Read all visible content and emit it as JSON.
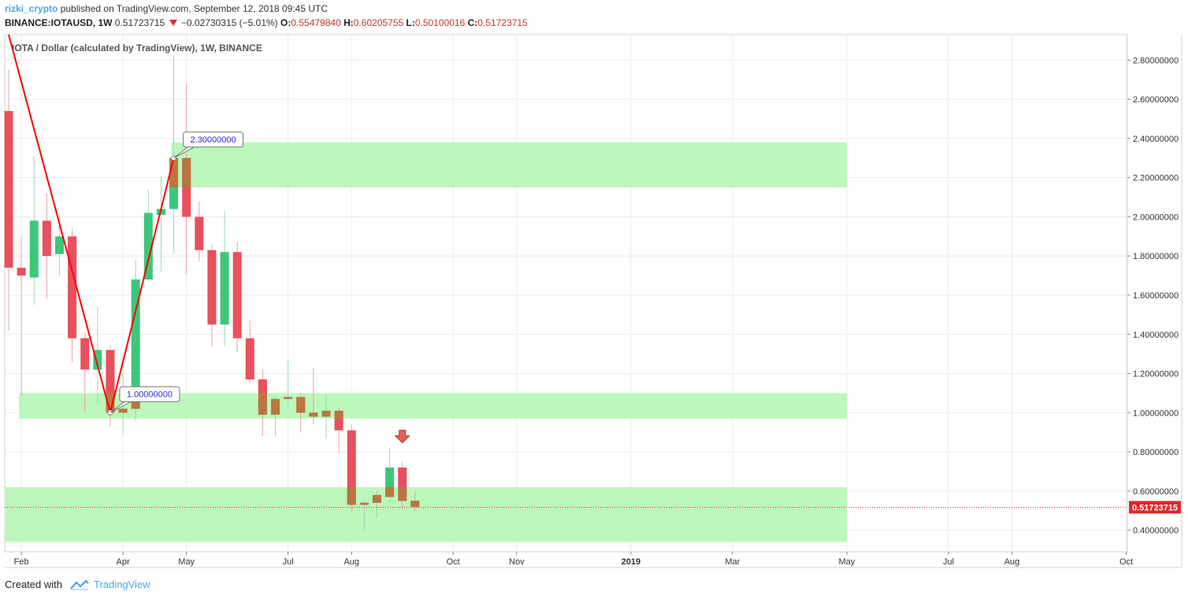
{
  "header": {
    "author": "rizki_crypto",
    "published": "published on TradingView.com, September 12, 2018 09:45 UTC"
  },
  "ohlc": {
    "symbol": "BINANCE:IOTAUSD, 1W",
    "last": "0.51723715",
    "change": "−0.02730315 (−5.01%)",
    "o_label": "O:",
    "o": "0.55479840",
    "h_label": "H:",
    "h": "0.60205755",
    "l_label": "L:",
    "l": "0.50100016",
    "c_label": "C:",
    "c": "0.51723715"
  },
  "footer": {
    "created_with": "Created with",
    "brand": "TradingView"
  },
  "chart_data": {
    "type": "candlestick",
    "title": "IOTA / Dollar (calculated by TradingView), 1W, BINANCE",
    "ylim": [
      0.29,
      2.93
    ],
    "y_ticks": [
      "0.40000000",
      "0.60000000",
      "0.80000000",
      "1.00000000",
      "1.20000000",
      "1.40000000",
      "1.60000000",
      "1.80000000",
      "2.00000000",
      "2.20000000",
      "2.40000000",
      "2.60000000",
      "2.80000000"
    ],
    "y_tick_values": [
      0.4,
      0.6,
      0.8,
      1.0,
      1.2,
      1.4,
      1.6,
      1.8,
      2.0,
      2.2,
      2.4,
      2.6,
      2.8
    ],
    "x_labels": [
      {
        "label": "Feb",
        "week": 1
      },
      {
        "label": "Apr",
        "week": 9
      },
      {
        "label": "May",
        "week": 14
      },
      {
        "label": "Jul",
        "week": 22
      },
      {
        "label": "Aug",
        "week": 27
      },
      {
        "label": "Oct",
        "week": 35
      },
      {
        "label": "Nov",
        "week": 40
      },
      {
        "label": "2019",
        "week": 49
      },
      {
        "label": "Mar",
        "week": 57
      },
      {
        "label": "May",
        "week": 66
      },
      {
        "label": "Jul",
        "week": 74
      },
      {
        "label": "Aug",
        "week": 79
      },
      {
        "label": "Oct",
        "week": 88
      }
    ],
    "bold_x_label": "2019",
    "candles": [
      {
        "o": 2.54,
        "h": 2.75,
        "l": 1.42,
        "c": 1.74
      },
      {
        "o": 1.74,
        "h": 1.9,
        "l": 1.09,
        "c": 1.7
      },
      {
        "o": 1.69,
        "h": 2.31,
        "l": 1.55,
        "c": 1.98
      },
      {
        "o": 1.98,
        "h": 2.12,
        "l": 1.58,
        "c": 1.8
      },
      {
        "o": 1.81,
        "h": 2.02,
        "l": 1.7,
        "c": 1.9
      },
      {
        "o": 1.9,
        "h": 1.94,
        "l": 1.26,
        "c": 1.38
      },
      {
        "o": 1.38,
        "h": 1.41,
        "l": 1.0,
        "c": 1.22
      },
      {
        "o": 1.22,
        "h": 1.54,
        "l": 1.04,
        "c": 1.32
      },
      {
        "o": 1.32,
        "h": 1.34,
        "l": 0.93,
        "c": 1.0
      },
      {
        "o": 1.0,
        "h": 1.26,
        "l": 0.89,
        "c": 1.02
      },
      {
        "o": 1.02,
        "h": 1.78,
        "l": 0.96,
        "c": 1.68
      },
      {
        "o": 1.68,
        "h": 2.14,
        "l": 1.67,
        "c": 2.02
      },
      {
        "o": 2.01,
        "h": 2.21,
        "l": 1.72,
        "c": 2.04
      },
      {
        "o": 2.04,
        "h": 2.82,
        "l": 1.81,
        "c": 2.3
      },
      {
        "o": 2.3,
        "h": 2.68,
        "l": 1.71,
        "c": 2.0
      },
      {
        "o": 2.0,
        "h": 2.08,
        "l": 1.77,
        "c": 1.83
      },
      {
        "o": 1.83,
        "h": 1.86,
        "l": 1.34,
        "c": 1.45
      },
      {
        "o": 1.45,
        "h": 2.03,
        "l": 1.34,
        "c": 1.82
      },
      {
        "o": 1.82,
        "h": 1.87,
        "l": 1.31,
        "c": 1.38
      },
      {
        "o": 1.38,
        "h": 1.47,
        "l": 1.15,
        "c": 1.17
      },
      {
        "o": 1.17,
        "h": 1.22,
        "l": 0.88,
        "c": 0.99
      },
      {
        "o": 0.99,
        "h": 1.08,
        "l": 0.88,
        "c": 1.07
      },
      {
        "o": 1.07,
        "h": 1.27,
        "l": 1.03,
        "c": 1.08
      },
      {
        "o": 1.08,
        "h": 1.1,
        "l": 0.9,
        "c": 1.0
      },
      {
        "o": 1.0,
        "h": 1.23,
        "l": 0.94,
        "c": 0.98
      },
      {
        "o": 0.98,
        "h": 1.09,
        "l": 0.87,
        "c": 1.01
      },
      {
        "o": 1.01,
        "h": 1.02,
        "l": 0.79,
        "c": 0.91
      },
      {
        "o": 0.91,
        "h": 0.94,
        "l": 0.49,
        "c": 0.53
      },
      {
        "o": 0.53,
        "h": 0.55,
        "l": 0.4,
        "c": 0.54
      },
      {
        "o": 0.54,
        "h": 0.6,
        "l": 0.46,
        "c": 0.58
      },
      {
        "o": 0.57,
        "h": 0.82,
        "l": 0.54,
        "c": 0.72
      },
      {
        "o": 0.72,
        "h": 0.75,
        "l": 0.51,
        "c": 0.55
      },
      {
        "o": 0.55,
        "h": 0.6,
        "l": 0.5,
        "c": 0.52
      }
    ],
    "zones": [
      {
        "from": 2.15,
        "to": 2.38,
        "start_week": 13,
        "end_week": 66
      },
      {
        "from": 0.97,
        "to": 1.1,
        "start_week": 1,
        "end_week": 66
      },
      {
        "from": 0.34,
        "to": 0.62,
        "start_week": 0,
        "end_week": 66
      }
    ],
    "trendline": [
      {
        "week": 0,
        "price": 2.93
      },
      {
        "week": 8,
        "price": 1.0
      },
      {
        "week": 13,
        "price": 2.3
      }
    ],
    "callouts": [
      {
        "label": "1.00000000",
        "week": 8,
        "price": 1.0
      },
      {
        "label": "2.30000000",
        "week": 13,
        "price": 2.3
      }
    ],
    "last_price_label": "0.51723715",
    "last_price": 0.51723715,
    "signal_arrow": {
      "week": 31,
      "price": 0.87,
      "direction": "down"
    },
    "colors": {
      "up": "#3dc77a",
      "down": "#e8505b",
      "overlap": "#b9763f",
      "zone": "#b8f7b8",
      "trend": "#ff0000",
      "grid": "#ebebeb",
      "axis": "#555555",
      "last_price": "#e0272c"
    }
  }
}
